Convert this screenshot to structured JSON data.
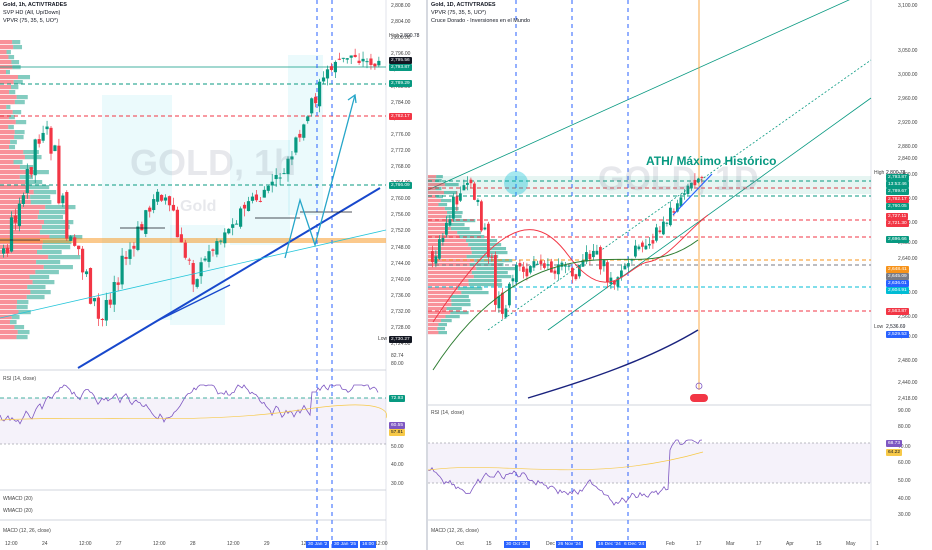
{
  "left": {
    "header": {
      "title": "Gold, 1h, ACTIVTRADES",
      "line2": "SVP HD (All, Up/Down)",
      "line3": "VPVR (75, 35, 5, UO*)"
    },
    "watermark": "GOLD, 1h",
    "watermark_sub": "Gold",
    "price_axis": [
      "2,808.00",
      "2,804.00",
      "2,800.00",
      "2,796.00",
      "2,792.00",
      "2,788.00",
      "2,784.00",
      "2,780.00",
      "2,776.00",
      "2,772.00",
      "2,768.00",
      "2,764.00",
      "2,760.00",
      "2,756.00",
      "2,752.00",
      "2,748.00",
      "2,744.00",
      "2,740.00",
      "2,736.00",
      "2,732.00",
      "2,728.00",
      "2,724.00"
    ],
    "high_label": "High",
    "high_value": "2,800.78",
    "tag_close": "2,795.56",
    "tag_close2": "2,793.87",
    "tag_green_1": "2,789.29",
    "tag_red_1": "2,782.17",
    "tag_green_2": "2,766.09",
    "low_label": "Low",
    "low_value": "2,730.27",
    "rsi_label": "RSI (14, close)",
    "rsi_axis": [
      "82.74",
      "80.00",
      "70.65",
      "60.00",
      "57.81",
      "50.00",
      "40.00",
      "30.00"
    ],
    "rsi_tag_green": "72.93",
    "rsi_tag_blue": "60.55",
    "rsi_tag_yellow": "57.81",
    "wmacd1": "WMACD (20)",
    "wmacd2": "WMACD (20)",
    "macd": "MACD (12, 26, close)",
    "time_axis": [
      "12:00",
      "24",
      "12:00",
      "27",
      "12:00",
      "28",
      "12:00",
      "29",
      "12:00",
      "30",
      "12:00"
    ],
    "date_tags": [
      "30 Jan '2",
      "30 Jan '25",
      "16:00"
    ]
  },
  "right": {
    "header": {
      "title": "Gold, 1D, ACTIVTRADES",
      "line2": "VPVR (75, 35, 5, UO*)",
      "line3": "Cruce Dorado - Inversiones en el Mundo"
    },
    "watermark": "GOLD, 1D",
    "annotation": "ATH/ Máximo Histórico",
    "price_axis": [
      "3,100.00",
      "3,050.00",
      "3,000.00",
      "2,960.00",
      "2,920.00",
      "2,880.00",
      "2,840.00",
      "2,800.00",
      "2,760.00",
      "2,720.00",
      "2,680.00",
      "2,640.00",
      "2,600.00",
      "2,560.00",
      "2,510.00",
      "2,480.00",
      "2,440.00",
      "2,418.00"
    ],
    "high_label": "High",
    "high_value": "2,800.78",
    "tags": [
      {
        "v": "2,793.87",
        "c": "#089981"
      },
      {
        "v": "13:53:46",
        "c": "#089981"
      },
      {
        "v": "2,789.67",
        "c": "#089981"
      },
      {
        "v": "2,782.17",
        "c": "#f23645"
      },
      {
        "v": "2,760.05",
        "c": "#089981"
      },
      {
        "v": "2,727.11",
        "c": "#f23645"
      },
      {
        "v": "2,721.30",
        "c": "#f23645"
      },
      {
        "v": "2,696.66",
        "c": "#089981"
      },
      {
        "v": "2,648.41",
        "c": "#f7931a"
      },
      {
        "v": "2,645.09",
        "c": "#787b86"
      },
      {
        "v": "2,636.01",
        "c": "#2962ff"
      },
      {
        "v": "2,604.91",
        "c": "#00bcd4"
      },
      {
        "v": "2,563.87",
        "c": "#f23645"
      }
    ],
    "low_label": "Low",
    "low_value": "2,536.69",
    "low_tag": "2,529.53",
    "rsi_label": "RSI (14, close)",
    "rsi_axis": [
      "90.00",
      "80.00",
      "70.00",
      "60.00",
      "50.00",
      "40.00",
      "30.00"
    ],
    "rsi_tag_1": "68.73",
    "rsi_tag_2": "64.22",
    "macd": "MACD (12, 26, close)",
    "time_axis": [
      "Oct",
      "15",
      "18",
      "Dec",
      "16",
      "2025",
      "13",
      "Feb",
      "17",
      "Mar",
      "17",
      "Apr",
      "15",
      "May",
      "1"
    ],
    "date_tags": [
      "30 Oct '24",
      "26 Nov '24",
      "16 Dec '24",
      "6 Dec '24"
    ]
  },
  "colors": {
    "up": "#089981",
    "down": "#f23645",
    "trend": "#2962ff",
    "arrow": "#26a6c9"
  }
}
